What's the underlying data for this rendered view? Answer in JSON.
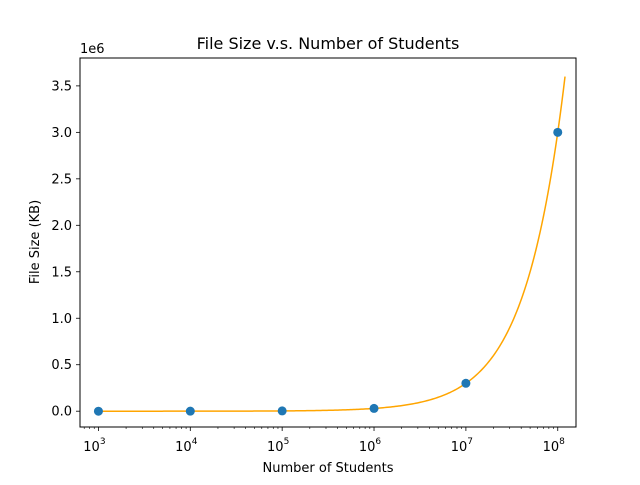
{
  "chart_data": {
    "type": "scatter",
    "title": "File Size v.s. Number of Students",
    "xlabel": "Number of Students",
    "ylabel": "File Size (KB)",
    "x_scale": "log",
    "y_offset_label": "1e6",
    "xlim": [
      630,
      158000000
    ],
    "ylim": [
      -170000,
      3800000
    ],
    "x_ticks": [
      {
        "base": "10",
        "exp": "3",
        "value": 1000
      },
      {
        "base": "10",
        "exp": "4",
        "value": 10000
      },
      {
        "base": "10",
        "exp": "5",
        "value": 100000
      },
      {
        "base": "10",
        "exp": "6",
        "value": 1000000
      },
      {
        "base": "10",
        "exp": "7",
        "value": 10000000
      },
      {
        "base": "10",
        "exp": "8",
        "value": 100000000
      }
    ],
    "y_ticks": [
      {
        "label": "0.0",
        "value": 0
      },
      {
        "label": "0.5",
        "value": 500000
      },
      {
        "label": "1.0",
        "value": 1000000
      },
      {
        "label": "1.5",
        "value": 1500000
      },
      {
        "label": "2.0",
        "value": 2000000
      },
      {
        "label": "2.5",
        "value": 2500000
      },
      {
        "label": "3.0",
        "value": 3000000
      },
      {
        "label": "3.5",
        "value": 3500000
      }
    ],
    "grid": false,
    "legend": "none",
    "series": [
      {
        "kind": "scatter",
        "color": "#1f77b4",
        "x": [
          1000,
          10000,
          100000,
          1000000,
          10000000,
          100000000
        ],
        "y": [
          30,
          300,
          3000,
          30000,
          300000,
          3000000
        ]
      },
      {
        "kind": "line",
        "color": "#ffa500",
        "x_range": [
          1000,
          120000000
        ],
        "y_of_x": "0.03 * x"
      }
    ]
  }
}
